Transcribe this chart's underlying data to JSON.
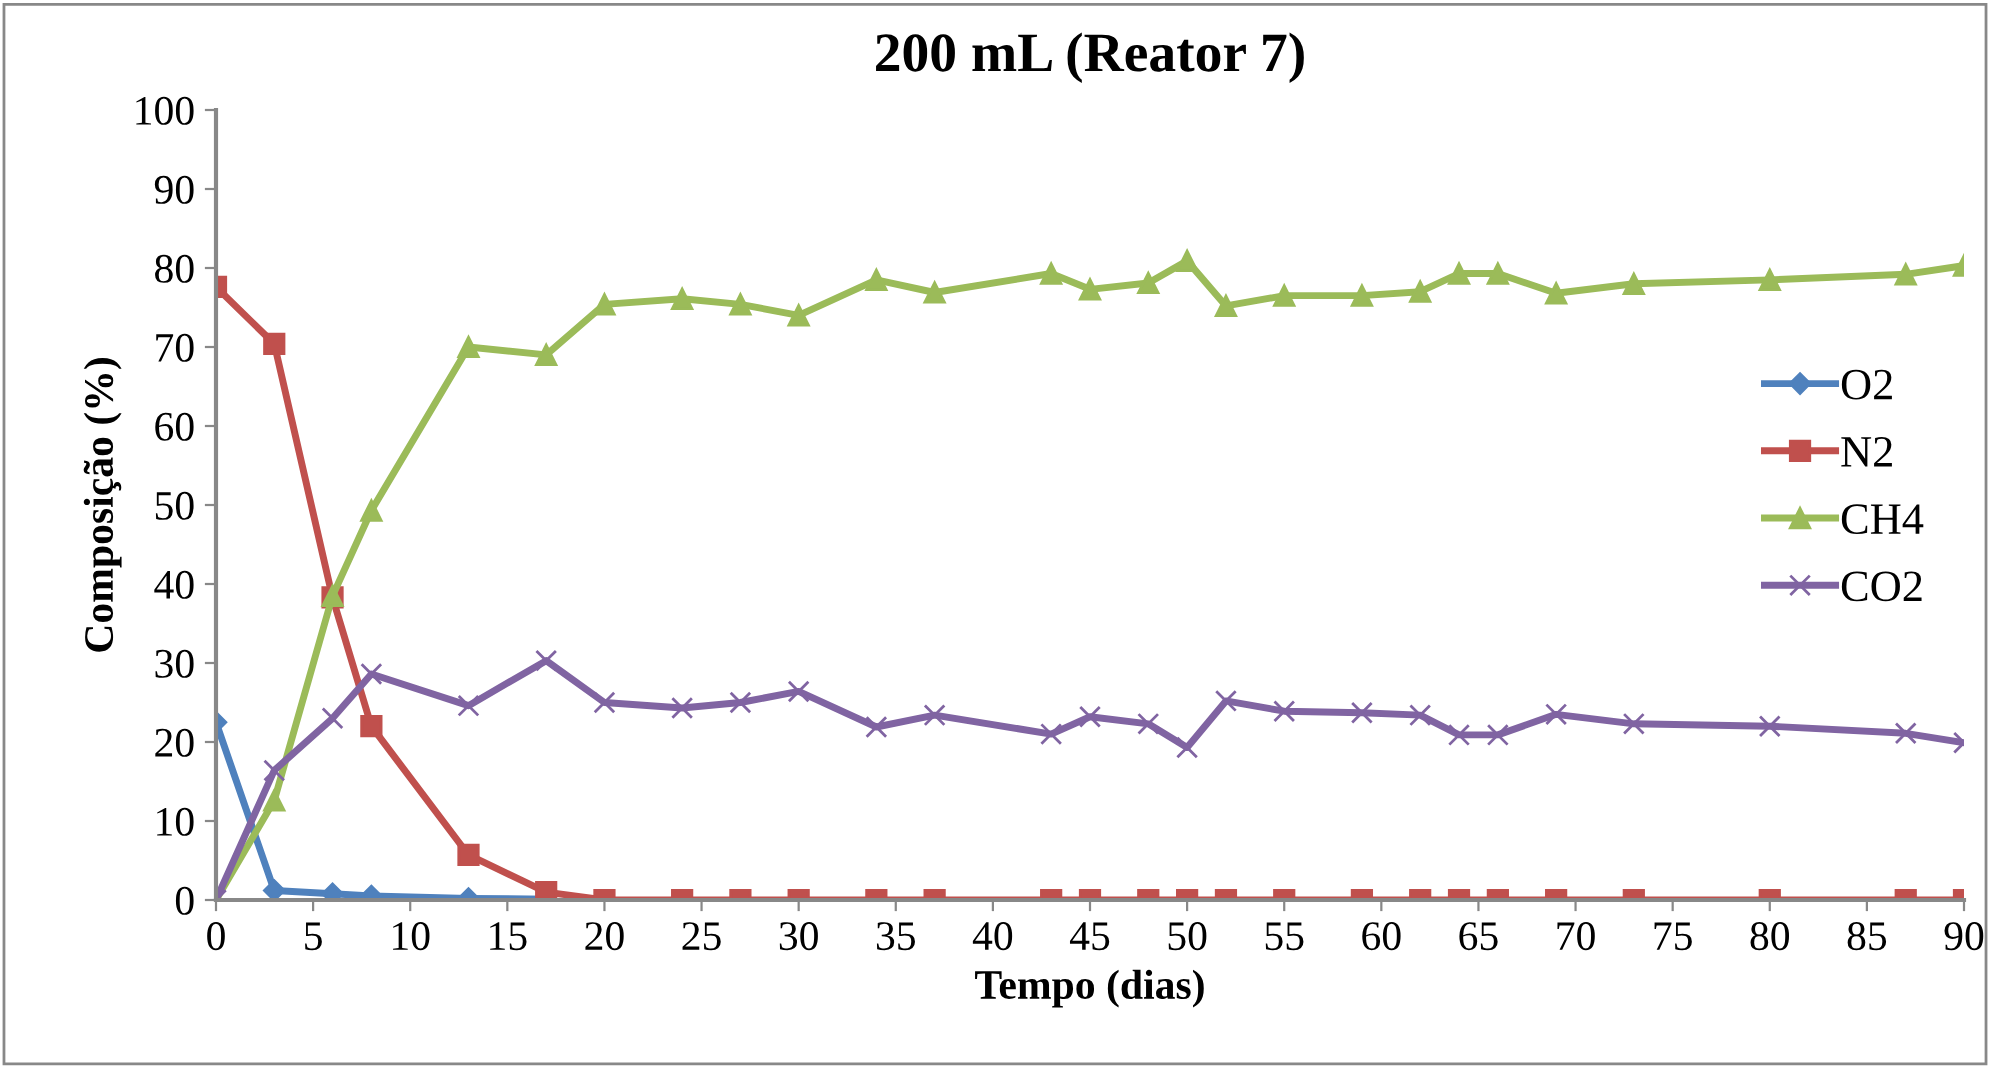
{
  "chart_data": {
    "type": "line",
    "title": "200 mL (Reator 7)",
    "xlabel": "Tempo (dias)",
    "ylabel": "Composição (%)",
    "x": [
      0,
      3,
      6,
      8,
      13,
      17,
      20,
      24,
      27,
      30,
      34,
      37,
      43,
      45,
      48,
      50,
      52,
      55,
      59,
      62,
      64,
      66,
      69,
      73,
      80,
      87,
      90
    ],
    "series": [
      {
        "name": "O2",
        "color": "#4f81bd",
        "marker": "diamond",
        "values": [
          22.5,
          1.2,
          0.8,
          0.5,
          0.2,
          0.1,
          null,
          null,
          null,
          null,
          null,
          null,
          null,
          null,
          null,
          null,
          null,
          null,
          null,
          null,
          null,
          null,
          null,
          null,
          null,
          null,
          null
        ]
      },
      {
        "name": "N2",
        "color": "#c0504d",
        "marker": "square",
        "values": [
          77.6,
          70.4,
          38.3,
          22.0,
          5.7,
          1.0,
          0,
          0,
          0,
          0,
          0,
          0,
          0,
          0,
          0,
          0,
          0,
          0,
          0,
          0,
          0,
          0,
          0,
          0,
          0,
          0,
          0
        ]
      },
      {
        "name": "CH4",
        "color": "#9bbb59",
        "marker": "triangle",
        "values": [
          0,
          12.6,
          38.5,
          49.3,
          70.0,
          69.0,
          75.4,
          76.1,
          75.4,
          74.0,
          78.5,
          76.9,
          79.3,
          77.3,
          78.1,
          80.9,
          75.2,
          76.5,
          76.5,
          77.0,
          79.3,
          79.3,
          76.8,
          78.0,
          78.5,
          79.2,
          80.3
        ]
      },
      {
        "name": "CO2",
        "color": "#8064a2",
        "marker": "cross",
        "values": [
          0,
          16.4,
          23.0,
          28.6,
          24.6,
          30.3,
          25.0,
          24.3,
          25.0,
          26.4,
          21.9,
          23.4,
          21.0,
          23.2,
          22.3,
          19.3,
          25.2,
          23.9,
          23.7,
          23.4,
          20.9,
          20.9,
          23.5,
          22.3,
          22.0,
          21.1,
          19.9
        ]
      }
    ],
    "xlim": [
      0,
      90
    ],
    "xticks": [
      0,
      5,
      10,
      15,
      20,
      25,
      30,
      35,
      40,
      45,
      50,
      55,
      60,
      65,
      70,
      75,
      80,
      85,
      90
    ],
    "ylim": [
      0,
      100
    ],
    "yticks": [
      0,
      10,
      20,
      30,
      40,
      50,
      60,
      70,
      80,
      90,
      100
    ],
    "grid": false,
    "legend": "right",
    "line_style": "solid"
  }
}
